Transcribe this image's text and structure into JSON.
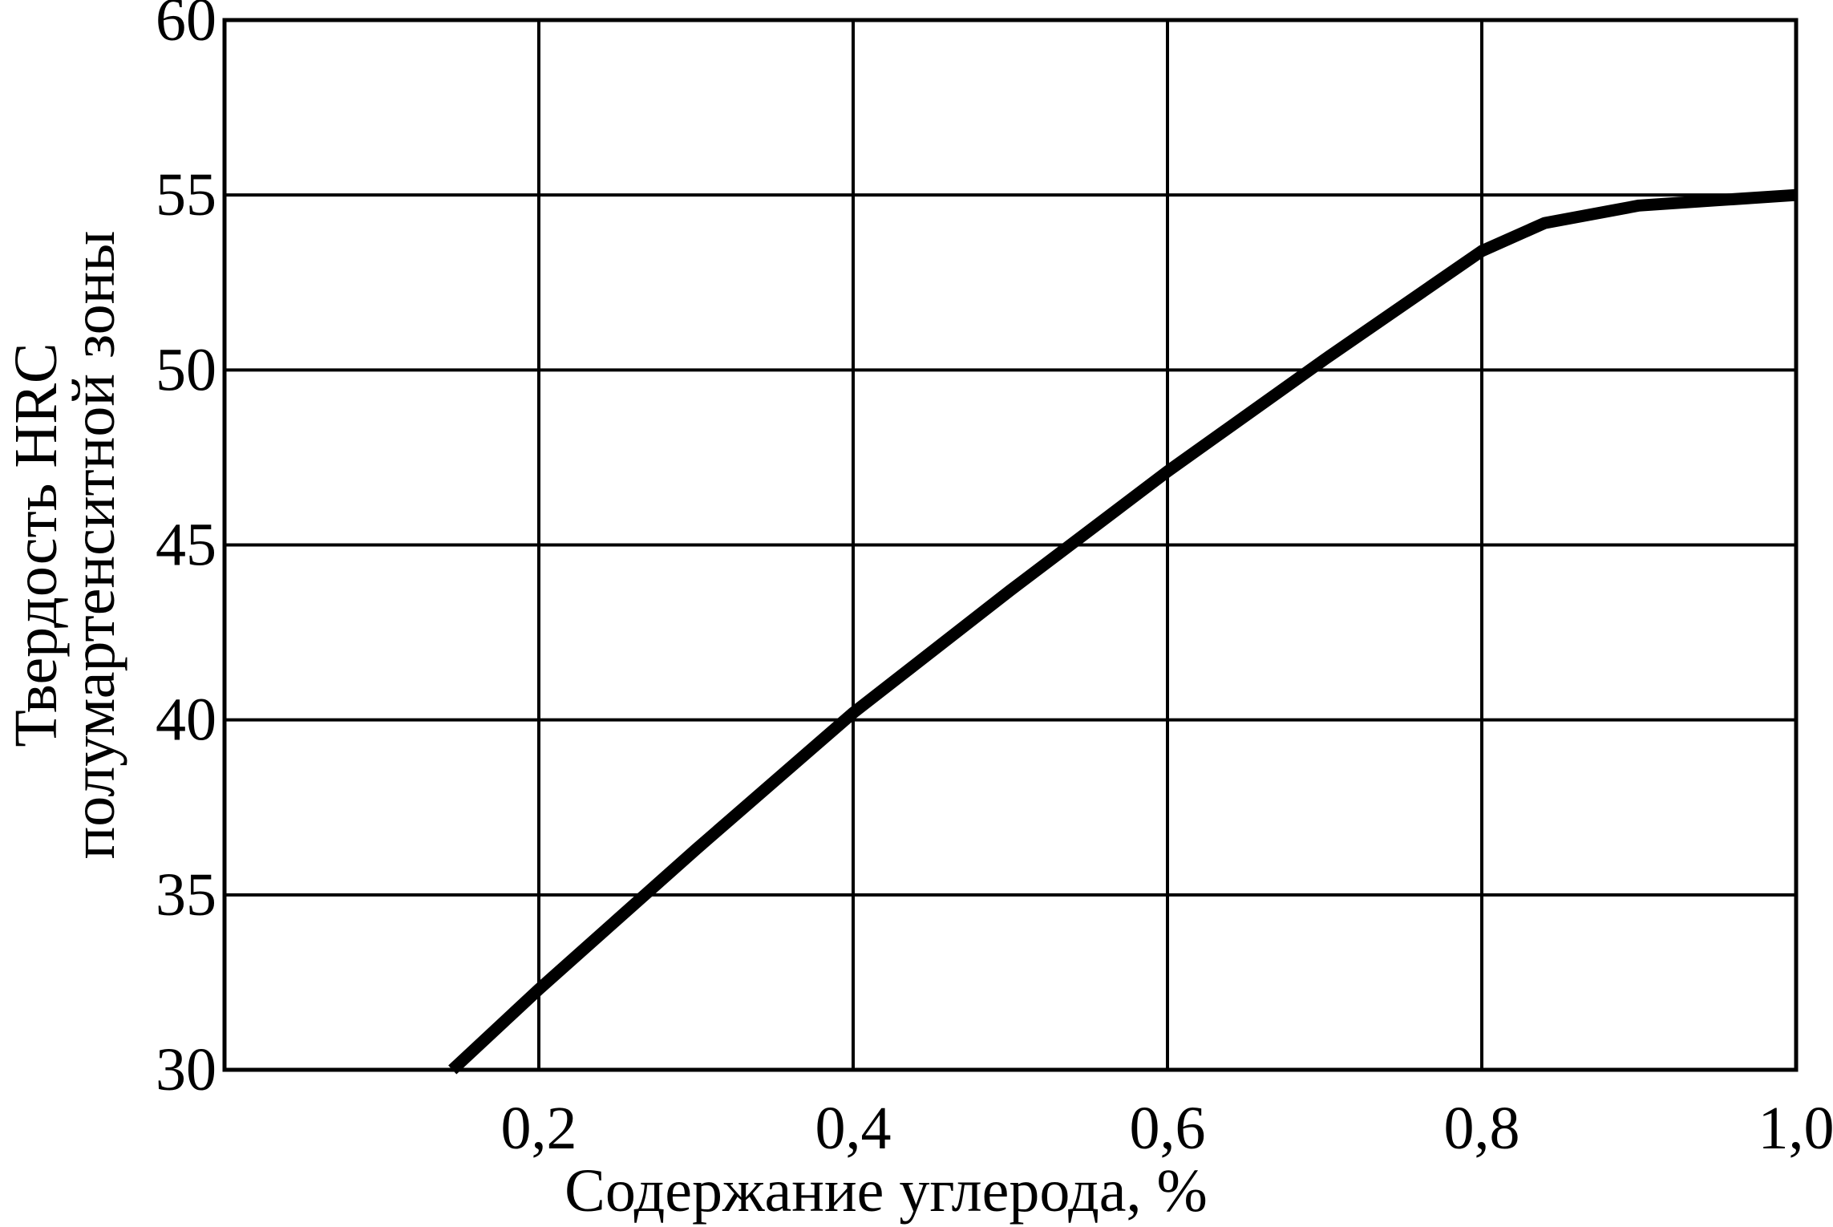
{
  "chart_data": {
    "type": "line",
    "xlabel": "Содержание углерода, %",
    "ylabel": [
      "Твердость HRC",
      "полумартенситной зоны"
    ],
    "xlim": [
      0.0,
      1.0
    ],
    "ylim": [
      30,
      60
    ],
    "x_ticks": [
      0.2,
      0.4,
      0.6,
      0.8,
      1.0
    ],
    "x_tick_labels": [
      "0,2",
      "0,4",
      "0,6",
      "0,8",
      "1,0"
    ],
    "y_ticks": [
      30,
      35,
      40,
      45,
      50,
      55,
      60
    ],
    "y_tick_labels": [
      "30",
      "35",
      "40",
      "45",
      "50",
      "55",
      "60"
    ],
    "grid": true,
    "series": [
      {
        "color": "#000000",
        "x": [
          0.145,
          0.2,
          0.3,
          0.4,
          0.5,
          0.6,
          0.7,
          0.8,
          0.84,
          0.9,
          0.95,
          1.0
        ],
        "y": [
          30.0,
          32.3,
          36.3,
          40.2,
          43.7,
          47.1,
          50.3,
          53.4,
          54.2,
          54.7,
          54.85,
          55.0
        ]
      }
    ]
  }
}
